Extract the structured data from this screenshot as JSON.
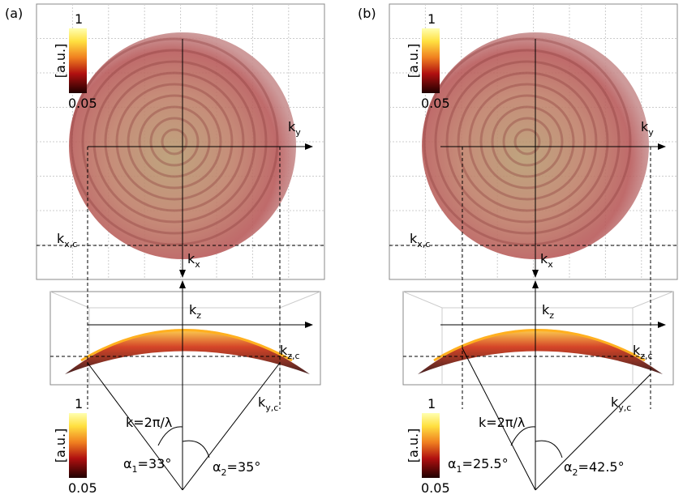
{
  "panels": [
    {
      "label": "(a)",
      "colorbar_top": {
        "max": "1",
        "unit": "[a.u.]",
        "min": "0.05"
      },
      "colorbar_bottom": {
        "max": "1",
        "unit": "[a.u.]",
        "min": "0.05"
      },
      "axes": {
        "ky": {
          "main": "k",
          "sub": "y"
        },
        "kx": {
          "main": "k",
          "sub": "x"
        },
        "kxc": {
          "main": "k",
          "sub": "x,c"
        },
        "kz": {
          "main": "k",
          "sub": "z"
        },
        "kzc": {
          "main": "k",
          "sub": "z,c"
        },
        "kyc": {
          "main": "k",
          "sub": "y,c"
        }
      },
      "wave_vector": "k=2π/λ",
      "alpha1": {
        "main": "α",
        "sub": "1",
        "rest": "=33°"
      },
      "alpha2": {
        "main": "α",
        "sub": "2",
        "rest": "=35°"
      }
    },
    {
      "label": "(b)",
      "colorbar_top": {
        "max": "1",
        "unit": "[a.u.]",
        "min": "0.05"
      },
      "colorbar_bottom": {
        "max": "1",
        "unit": "[a.u.]",
        "min": "0.05"
      },
      "axes": {
        "ky": {
          "main": "k",
          "sub": "y"
        },
        "kx": {
          "main": "k",
          "sub": "x"
        },
        "kxc": {
          "main": "k",
          "sub": "x,c"
        },
        "kz": {
          "main": "k",
          "sub": "z"
        },
        "kzc": {
          "main": "k",
          "sub": "z,c"
        },
        "kyc": {
          "main": "k",
          "sub": "y,c"
        }
      },
      "wave_vector": "k=2π/λ",
      "alpha1": {
        "main": "α",
        "sub": "1",
        "rest": "=25.5°"
      },
      "alpha2": {
        "main": "α",
        "sub": "2",
        "rest": "=42.5°"
      }
    }
  ]
}
